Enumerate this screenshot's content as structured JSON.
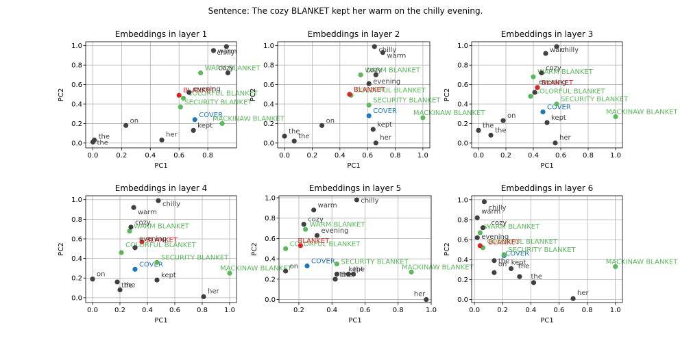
{
  "suptitle": "Sentence: The cozy BLANKET kept her warm on the chilly evening.",
  "colors": {
    "context": "#404040",
    "target": "#d62728",
    "probe": "#1f77b4",
    "candidate": "#5cb85c"
  },
  "chart_data": [
    {
      "type": "scatter",
      "title": "Embeddings in layer 1",
      "xlabel": "PC1",
      "ylabel": "PC2",
      "xlim": [
        -0.05,
        1.0
      ],
      "ylim": [
        -0.05,
        1.04
      ],
      "xticks": [
        0.0,
        0.2,
        0.4,
        0.6,
        0.8
      ],
      "yticks": [
        0.0,
        0.2,
        0.4,
        0.6,
        0.8,
        1.0
      ],
      "grid": true,
      "points": [
        {
          "label": "the",
          "x": 0.01,
          "y": 0.03,
          "group": "context",
          "dx": 6,
          "dy": -2
        },
        {
          "label": "the",
          "x": 0.0,
          "y": 0.01,
          "group": "context",
          "dx": 6,
          "dy": 4
        },
        {
          "label": "on",
          "x": 0.23,
          "y": 0.18,
          "group": "context",
          "dx": 6,
          "dy": -4
        },
        {
          "label": "her",
          "x": 0.48,
          "y": 0.03,
          "group": "context",
          "dx": 6,
          "dy": -5
        },
        {
          "label": "kept",
          "x": 0.7,
          "y": 0.13,
          "group": "context",
          "dx": 6,
          "dy": -4
        },
        {
          "label": "COVER",
          "x": 0.71,
          "y": 0.24,
          "group": "probe",
          "dx": 6,
          "dy": -4
        },
        {
          "label": "MACKINAW BLANKET",
          "x": 0.9,
          "y": 0.2,
          "group": "candidate",
          "dx": -14,
          "dy": -4
        },
        {
          "label": "SECURITY BLANKET",
          "x": 0.61,
          "y": 0.37,
          "group": "candidate",
          "dx": 6,
          "dy": -4
        },
        {
          "label": "COLORFUL BLANKET",
          "x": 0.63,
          "y": 0.46,
          "group": "candidate",
          "dx": 6,
          "dy": -4
        },
        {
          "label": "BLANKET",
          "x": 0.6,
          "y": 0.49,
          "group": "target",
          "dx": 6,
          "dy": -4
        },
        {
          "label": "evening",
          "x": 0.67,
          "y": 0.52,
          "group": "context",
          "dx": 6,
          "dy": -2
        },
        {
          "label": "WARM BLANKET",
          "x": 0.75,
          "y": 0.72,
          "group": "candidate",
          "dx": 6,
          "dy": -4
        },
        {
          "label": "cozy",
          "x": 0.94,
          "y": 0.72,
          "group": "context",
          "dx": -14,
          "dy": -4
        },
        {
          "label": "warm",
          "x": 0.84,
          "y": 0.95,
          "group": "context",
          "dx": 6,
          "dy": 4
        },
        {
          "label": "chilly",
          "x": 0.93,
          "y": 0.99,
          "group": "context",
          "dx": -14,
          "dy": 12
        }
      ]
    },
    {
      "type": "scatter",
      "title": "Embeddings in layer 2",
      "xlabel": "PC1",
      "ylabel": "PC2",
      "xlim": [
        -0.05,
        1.05
      ],
      "ylim": [
        -0.05,
        1.04
      ],
      "xticks": [
        0.0,
        0.2,
        0.4,
        0.6,
        0.8,
        1.0
      ],
      "yticks": [
        0.0,
        0.2,
        0.4,
        0.6,
        0.8,
        1.0
      ],
      "grid": true,
      "points": [
        {
          "label": "the",
          "x": 0.0,
          "y": 0.07,
          "group": "context",
          "dx": 6,
          "dy": -4
        },
        {
          "label": "the",
          "x": 0.07,
          "y": 0.02,
          "group": "context",
          "dx": 6,
          "dy": -4
        },
        {
          "label": "on",
          "x": 0.27,
          "y": 0.18,
          "group": "context",
          "dx": 6,
          "dy": -4
        },
        {
          "label": "her",
          "x": 0.66,
          "y": 0.0,
          "group": "context",
          "dx": 6,
          "dy": -5
        },
        {
          "label": "kept",
          "x": 0.64,
          "y": 0.14,
          "group": "context",
          "dx": 6,
          "dy": -4
        },
        {
          "label": "COVER",
          "x": 0.61,
          "y": 0.28,
          "group": "probe",
          "dx": 6,
          "dy": -4
        },
        {
          "label": "MACKINAW BLANKET",
          "x": 1.0,
          "y": 0.26,
          "group": "candidate",
          "dx": -14,
          "dy": -4
        },
        {
          "label": "SECURITY BLANKET",
          "x": 0.61,
          "y": 0.39,
          "group": "candidate",
          "dx": 6,
          "dy": -4
        },
        {
          "label": "COLORFUL BLANKET",
          "x": 0.48,
          "y": 0.49,
          "group": "candidate",
          "dx": 6,
          "dy": -4
        },
        {
          "label": "BLANKET",
          "x": 0.47,
          "y": 0.5,
          "group": "target",
          "dx": 6,
          "dy": -4
        },
        {
          "label": "evening",
          "x": 0.61,
          "y": 0.61,
          "group": "context",
          "dx": 6,
          "dy": 0
        },
        {
          "label": "WARM BLANKET",
          "x": 0.55,
          "y": 0.7,
          "group": "candidate",
          "dx": 6,
          "dy": -4
        },
        {
          "label": "cozy",
          "x": 0.66,
          "y": 0.7,
          "group": "context",
          "dx": -14,
          "dy": -4
        },
        {
          "label": "warm",
          "x": 0.71,
          "y": 0.93,
          "group": "context",
          "dx": 6,
          "dy": 8
        },
        {
          "label": "chilly",
          "x": 0.65,
          "y": 0.99,
          "group": "context",
          "dx": 6,
          "dy": 8
        }
      ]
    },
    {
      "type": "scatter",
      "title": "Embeddings in layer 3",
      "xlabel": "PC1",
      "ylabel": "PC2",
      "xlim": [
        -0.05,
        1.05
      ],
      "ylim": [
        -0.05,
        1.04
      ],
      "xticks": [
        0.0,
        0.2,
        0.4,
        0.6,
        0.8,
        1.0
      ],
      "yticks": [
        0.0,
        0.2,
        0.4,
        0.6,
        0.8,
        1.0
      ],
      "grid": true,
      "points": [
        {
          "label": "the",
          "x": 0.0,
          "y": 0.13,
          "group": "context",
          "dx": 6,
          "dy": -4
        },
        {
          "label": "the",
          "x": 0.09,
          "y": 0.08,
          "group": "context",
          "dx": 6,
          "dy": -4
        },
        {
          "label": "on",
          "x": 0.18,
          "y": 0.23,
          "group": "context",
          "dx": 6,
          "dy": -4
        },
        {
          "label": "her",
          "x": 0.56,
          "y": 0.0,
          "group": "context",
          "dx": 6,
          "dy": -5
        },
        {
          "label": "kept",
          "x": 0.5,
          "y": 0.21,
          "group": "context",
          "dx": 6,
          "dy": -4
        },
        {
          "label": "COVER",
          "x": 0.47,
          "y": 0.32,
          "group": "probe",
          "dx": 6,
          "dy": -4
        },
        {
          "label": "MACKINAW BLANKET",
          "x": 1.0,
          "y": 0.27,
          "group": "candidate",
          "dx": -14,
          "dy": -4
        },
        {
          "label": "SECURITY BLANKET",
          "x": 0.57,
          "y": 0.4,
          "group": "candidate",
          "dx": 6,
          "dy": -4
        },
        {
          "label": "COLORFUL BLANKET",
          "x": 0.38,
          "y": 0.48,
          "group": "candidate",
          "dx": 6,
          "dy": -4
        },
        {
          "label": "BLANKET",
          "x": 0.43,
          "y": 0.57,
          "group": "target",
          "dx": 6,
          "dy": -4
        },
        {
          "label": "evening",
          "x": 0.41,
          "y": 0.52,
          "group": "context",
          "dx": 6,
          "dy": -12
        },
        {
          "label": "WARM BLANKET",
          "x": 0.4,
          "y": 0.68,
          "group": "candidate",
          "dx": 6,
          "dy": -4
        },
        {
          "label": "cozy",
          "x": 0.46,
          "y": 0.72,
          "group": "context",
          "dx": 6,
          "dy": -4
        },
        {
          "label": "warm",
          "x": 0.49,
          "y": 0.92,
          "group": "context",
          "dx": 6,
          "dy": -2
        },
        {
          "label": "chilly",
          "x": 0.57,
          "y": 0.99,
          "group": "context",
          "dx": 6,
          "dy": 8
        }
      ]
    },
    {
      "type": "scatter",
      "title": "Embeddings in layer 4",
      "xlabel": "PC1",
      "ylabel": "PC2",
      "xlim": [
        -0.05,
        1.05
      ],
      "ylim": [
        -0.05,
        1.04
      ],
      "xticks": [
        0.0,
        0.2,
        0.4,
        0.6,
        0.8,
        1.0
      ],
      "yticks": [
        0.0,
        0.2,
        0.4,
        0.6,
        0.8,
        1.0
      ],
      "grid": true,
      "points": [
        {
          "label": "on",
          "x": 0.0,
          "y": 0.19,
          "group": "context",
          "dx": 6,
          "dy": -4
        },
        {
          "label": "the",
          "x": 0.18,
          "y": 0.16,
          "group": "context",
          "dx": 6,
          "dy": 8
        },
        {
          "label": "the",
          "x": 0.2,
          "y": 0.08,
          "group": "context",
          "dx": 6,
          "dy": -4
        },
        {
          "label": "her",
          "x": 0.81,
          "y": 0.01,
          "group": "context",
          "dx": 6,
          "dy": -5
        },
        {
          "label": "kept",
          "x": 0.47,
          "y": 0.18,
          "group": "context",
          "dx": 6,
          "dy": -4
        },
        {
          "label": "COVER",
          "x": 0.31,
          "y": 0.29,
          "group": "probe",
          "dx": 6,
          "dy": -4
        },
        {
          "label": "MACKINAW BLANKET",
          "x": 1.0,
          "y": 0.25,
          "group": "candidate",
          "dx": -14,
          "dy": -4
        },
        {
          "label": "SECURITY BLANKET",
          "x": 0.47,
          "y": 0.36,
          "group": "candidate",
          "dx": 6,
          "dy": -4
        },
        {
          "label": "COLORFUL BLANKET",
          "x": 0.21,
          "y": 0.46,
          "group": "candidate",
          "dx": 6,
          "dy": -8
        },
        {
          "label": "BLANKET",
          "x": 0.36,
          "y": 0.57,
          "group": "target",
          "dx": 6,
          "dy": 0
        },
        {
          "label": "evening",
          "x": 0.31,
          "y": 0.51,
          "group": "context",
          "dx": 6,
          "dy": -10
        },
        {
          "label": "WARM BLANKET",
          "x": 0.27,
          "y": 0.68,
          "group": "candidate",
          "dx": 6,
          "dy": -4
        },
        {
          "label": "cozy",
          "x": 0.28,
          "y": 0.72,
          "group": "context",
          "dx": 6,
          "dy": -4
        },
        {
          "label": "warm",
          "x": 0.3,
          "y": 0.92,
          "group": "context",
          "dx": 6,
          "dy": 10
        },
        {
          "label": "chilly",
          "x": 0.48,
          "y": 0.99,
          "group": "context",
          "dx": 6,
          "dy": 8
        }
      ]
    },
    {
      "type": "scatter",
      "title": "Embeddings in layer 5",
      "xlabel": "PC1",
      "ylabel": "PC2",
      "xlim": [
        0.08,
        1.0
      ],
      "ylim": [
        -0.03,
        1.02
      ],
      "xticks": [
        0.2,
        0.4,
        0.6,
        0.8,
        1.0
      ],
      "yticks": [
        0.0,
        0.2,
        0.4,
        0.6,
        0.8,
        1.0
      ],
      "grid": true,
      "points": [
        {
          "label": "on",
          "x": 0.12,
          "y": 0.28,
          "group": "context",
          "dx": 6,
          "dy": -4
        },
        {
          "label": "the",
          "x": 0.42,
          "y": 0.2,
          "group": "context",
          "dx": 6,
          "dy": -4
        },
        {
          "label": "the",
          "x": 0.43,
          "y": 0.25,
          "group": "context",
          "dx": 6,
          "dy": 4
        },
        {
          "label": "kept",
          "x": 0.5,
          "y": 0.25,
          "group": "context",
          "dx": 0,
          "dy": -4
        },
        {
          "label": "the",
          "x": 0.53,
          "y": 0.25,
          "group": "context",
          "dx": 0,
          "dy": -4
        },
        {
          "label": "her",
          "x": 0.97,
          "y": 0.0,
          "group": "context",
          "dx": -18,
          "dy": -5
        },
        {
          "label": "COVER",
          "x": 0.25,
          "y": 0.33,
          "group": "probe",
          "dx": 6,
          "dy": -4
        },
        {
          "label": "MACKINAW BLANKET",
          "x": 0.88,
          "y": 0.27,
          "group": "candidate",
          "dx": -14,
          "dy": -4
        },
        {
          "label": "SECURITY BLANKET",
          "x": 0.43,
          "y": 0.35,
          "group": "candidate",
          "dx": 6,
          "dy": 0
        },
        {
          "label": "COLORFUL BLANKET",
          "x": 0.12,
          "y": 0.5,
          "group": "candidate",
          "dx": 6,
          "dy": -4
        },
        {
          "label": "BLANKET",
          "x": 0.21,
          "y": 0.53,
          "group": "target",
          "dx": -4,
          "dy": -4
        },
        {
          "label": "evening",
          "x": 0.31,
          "y": 0.63,
          "group": "context",
          "dx": 6,
          "dy": -4
        },
        {
          "label": "WARM BLANKET",
          "x": 0.24,
          "y": 0.69,
          "group": "candidate",
          "dx": 6,
          "dy": -4
        },
        {
          "label": "cozy",
          "x": 0.23,
          "y": 0.74,
          "group": "context",
          "dx": 6,
          "dy": -4
        },
        {
          "label": "warm",
          "x": 0.29,
          "y": 0.88,
          "group": "context",
          "dx": 6,
          "dy": -4
        },
        {
          "label": "chilly",
          "x": 0.55,
          "y": 0.98,
          "group": "context",
          "dx": 6,
          "dy": 4
        }
      ]
    },
    {
      "type": "scatter",
      "title": "Embeddings in layer 6",
      "xlabel": "PC1",
      "ylabel": "PC2",
      "xlim": [
        -0.02,
        1.05
      ],
      "ylim": [
        -0.03,
        1.04
      ],
      "xticks": [
        0.0,
        0.2,
        0.4,
        0.6,
        0.8,
        1.0
      ],
      "yticks": [
        0.0,
        0.2,
        0.4,
        0.6,
        0.8,
        1.0
      ],
      "grid": true,
      "points": [
        {
          "label": "the",
          "x": 0.14,
          "y": 0.27,
          "group": "context",
          "dx": 6,
          "dy": -14
        },
        {
          "label": "on",
          "x": 0.14,
          "y": 0.39,
          "group": "context",
          "dx": 6,
          "dy": 8
        },
        {
          "label": "kept",
          "x": 0.26,
          "y": 0.31,
          "group": "context",
          "dx": 0,
          "dy": -6
        },
        {
          "label": "the",
          "x": 0.32,
          "y": 0.23,
          "group": "context",
          "dx": -2,
          "dy": -12
        },
        {
          "label": "the",
          "x": 0.42,
          "y": 0.17,
          "group": "context",
          "dx": -4,
          "dy": -6
        },
        {
          "label": "her",
          "x": 0.7,
          "y": 0.01,
          "group": "context",
          "dx": 6,
          "dy": -5
        },
        {
          "label": "COVER",
          "x": 0.21,
          "y": 0.44,
          "group": "probe",
          "dx": 2,
          "dy": 0
        },
        {
          "label": "MACKINAW BLANKET",
          "x": 1.0,
          "y": 0.33,
          "group": "candidate",
          "dx": -14,
          "dy": -4
        },
        {
          "label": "SECURITY BLANKET",
          "x": 0.21,
          "y": 0.45,
          "group": "candidate",
          "dx": 6,
          "dy": -4
        },
        {
          "label": "COLORFUL BLANKET",
          "x": 0.06,
          "y": 0.52,
          "group": "candidate",
          "dx": 6,
          "dy": -6
        },
        {
          "label": "BLANKET",
          "x": 0.04,
          "y": 0.54,
          "group": "target",
          "dx": 12,
          "dy": -2
        },
        {
          "label": "evening",
          "x": 0.02,
          "y": 0.62,
          "group": "context",
          "dx": 6,
          "dy": 2
        },
        {
          "label": "WARM BLANKET",
          "x": 0.04,
          "y": 0.67,
          "group": "candidate",
          "dx": 6,
          "dy": -6
        },
        {
          "label": "cozy",
          "x": 0.06,
          "y": 0.72,
          "group": "context",
          "dx": 12,
          "dy": -4
        },
        {
          "label": "warm",
          "x": 0.02,
          "y": 0.82,
          "group": "context",
          "dx": 6,
          "dy": -6
        },
        {
          "label": "chilly",
          "x": 0.07,
          "y": 0.98,
          "group": "context",
          "dx": 6,
          "dy": 12
        }
      ]
    }
  ]
}
